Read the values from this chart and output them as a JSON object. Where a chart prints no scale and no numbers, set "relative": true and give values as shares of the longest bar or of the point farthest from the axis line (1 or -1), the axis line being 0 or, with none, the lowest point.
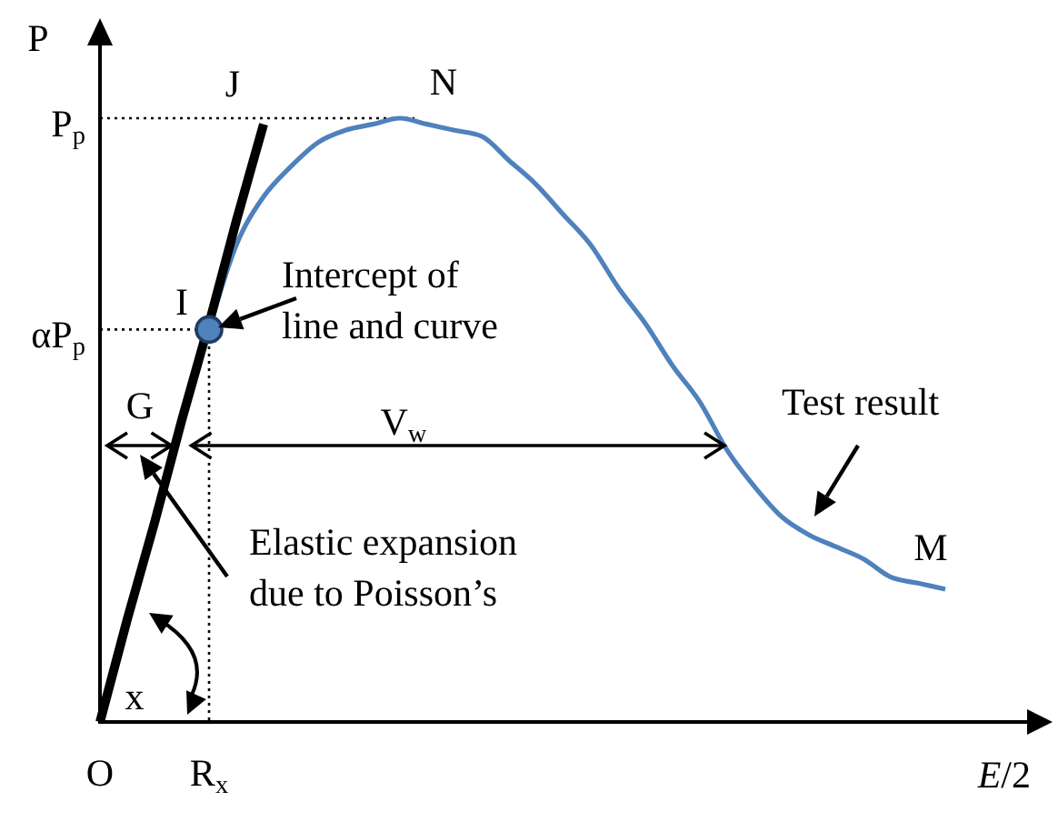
{
  "chart_data": {
    "type": "line",
    "relative": true,
    "xlabel": "E/2",
    "ylabel": "P",
    "categories": [
      "O",
      null,
      null,
      null,
      "R$_{x}$",
      null,
      null,
      null,
      null,
      null,
      null,
      null,
      null,
      null,
      null,
      null,
      null,
      null,
      null,
      null,
      null,
      null,
      null,
      null,
      null,
      null,
      null,
      null,
      null,
      null,
      null,
      null
    ],
    "series": [
      {
        "color": "#4f81bd",
        "values": [
          null,
          null,
          null,
          null,
          0.65,
          0.79,
          0.87,
          0.92,
          0.96,
          0.98,
          0.99,
          1,
          0.99,
          0.98,
          0.97,
          0.93,
          0.89,
          0.84,
          0.79,
          0.72,
          0.66,
          0.59,
          0.53,
          0.45,
          0.39,
          0.34,
          0.31,
          0.29,
          0.27,
          0.24,
          0.23,
          0.22
        ]
      },
      {
        "color": "#000000",
        "values": [
          0,
          0.17,
          0.33,
          0.5,
          0.66,
          0.83,
          0.99,
          null,
          null,
          null,
          null,
          null,
          null,
          null,
          null,
          null,
          null,
          null,
          null,
          null,
          null,
          null,
          null,
          null,
          null,
          null,
          null,
          null,
          null,
          null,
          null,
          null
        ]
      }
    ],
    "ref_lines": [
      {
        "axis": "y",
        "value": 1,
        "label": "P$_{p}$",
        "line_style": "dotted"
      },
      {
        "axis": "y",
        "value": 0.65,
        "label": "αP$_{p}$",
        "line_style": "dotted"
      },
      {
        "axis": "x",
        "value": "R$_{x}$",
        "line_style": "dotted"
      }
    ],
    "annotations": [
      "J",
      "N",
      "I",
      "Intercept of line and curve",
      "G",
      "V$_{w}$",
      "Elastic expansion due to Poisson’s",
      "Test result",
      "M",
      "x"
    ]
  }
}
